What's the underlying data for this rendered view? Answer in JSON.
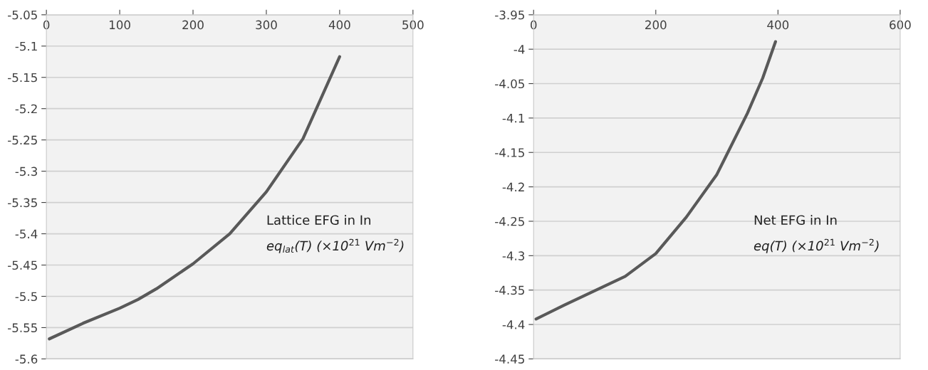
{
  "chart_data": [
    {
      "type": "line",
      "x": [
        4,
        50,
        100,
        125,
        150,
        200,
        250,
        300,
        350,
        400
      ],
      "series": [
        {
          "color": "#595959",
          "values": [
            -5.568,
            -5.543,
            -5.519,
            -5.505,
            -5.488,
            -5.448,
            -5.4,
            -5.333,
            -5.248,
            -5.117
          ]
        }
      ],
      "xlim": [
        0,
        500
      ],
      "xticks": [
        0,
        100,
        200,
        300,
        400,
        500
      ],
      "ylim": [
        -5.6,
        -5.05
      ],
      "yticks": [
        -5.6,
        -5.55,
        -5.5,
        -5.45,
        -5.4,
        -5.35,
        -5.3,
        -5.25,
        -5.2,
        -5.15,
        -5.1,
        -5.05
      ],
      "grid": "y",
      "marker": "none",
      "line_style": "solid",
      "annotations": [
        "Lattice EFG in In",
        "eq$_{lat}$(T) (×10$^{21}$ Vm$^{−2}$)"
      ]
    },
    {
      "type": "line",
      "x": [
        4,
        50,
        100,
        150,
        200,
        250,
        300,
        350,
        375,
        396
      ],
      "series": [
        {
          "color": "#595959",
          "values": [
            -4.392,
            -4.372,
            -4.351,
            -4.33,
            -4.297,
            -4.244,
            -4.182,
            -4.093,
            -4.042,
            -3.989
          ]
        }
      ],
      "xlim": [
        0,
        600
      ],
      "xticks": [
        0,
        200,
        400,
        600
      ],
      "ylim": [
        -4.45,
        -3.95
      ],
      "yticks": [
        -4.45,
        -4.4,
        -4.35,
        -4.3,
        -4.25,
        -4.2,
        -4.15,
        -4.1,
        -4.05,
        -4,
        -3.95
      ],
      "grid": "y",
      "marker": "none",
      "line_style": "solid",
      "annotations": [
        "Net EFG in In",
        "eq(T) (×10$^{21}$ Vm$^{−2}$)"
      ]
    }
  ]
}
